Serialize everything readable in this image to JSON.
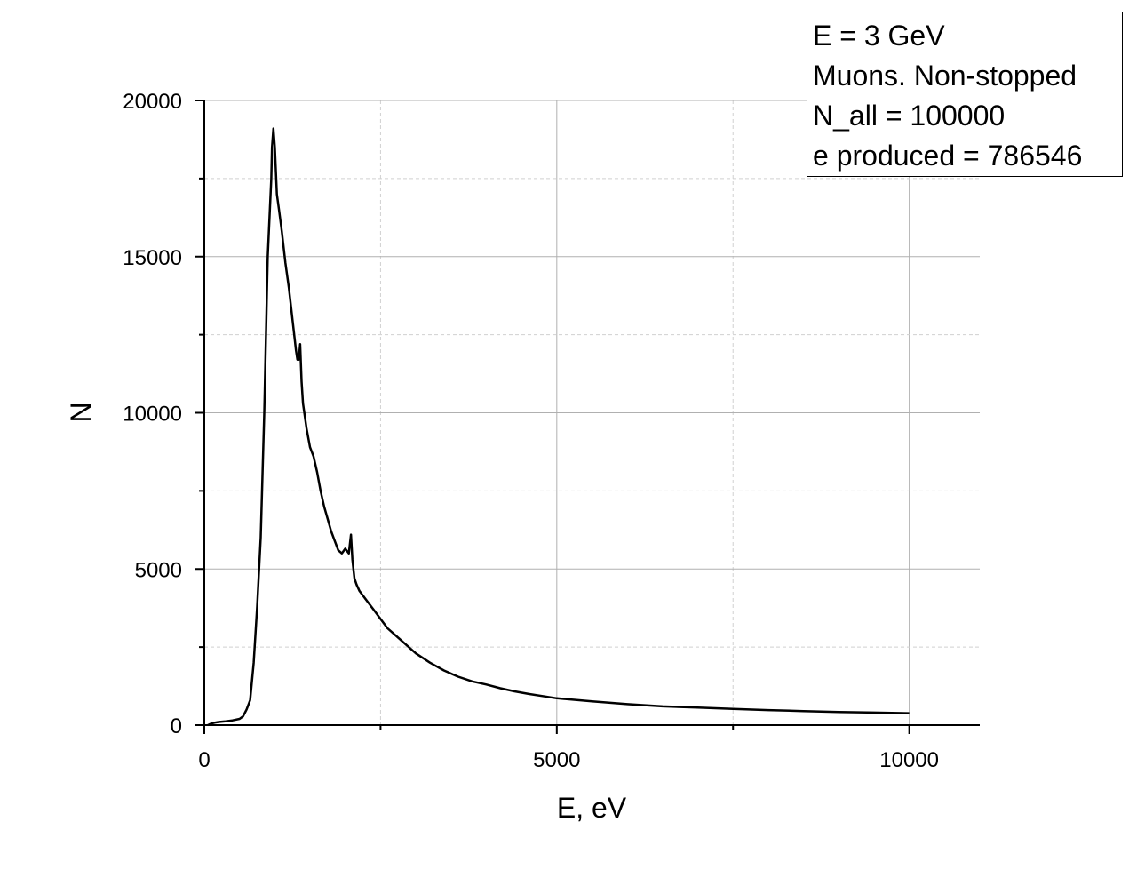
{
  "chart_data": {
    "type": "line",
    "xlabel": "E, eV",
    "ylabel": "N",
    "xlim": [
      0,
      11000
    ],
    "ylim": [
      0,
      20000
    ],
    "xticks": [
      0,
      5000,
      10000
    ],
    "yticks": [
      0,
      5000,
      10000,
      15000,
      20000
    ],
    "grid": true,
    "legend_position": "top-right",
    "annotation_lines": [
      "E = 3 GeV",
      "Muons. Non-stopped",
      "N_all = 100000",
      "e produced = 786546"
    ],
    "series": [
      {
        "color": "#000000",
        "x": [
          50,
          100,
          150,
          200,
          300,
          400,
          500,
          550,
          600,
          650,
          700,
          750,
          800,
          850,
          900,
          950,
          960,
          980,
          1000,
          1030,
          1060,
          1100,
          1150,
          1200,
          1250,
          1300,
          1320,
          1340,
          1360,
          1380,
          1400,
          1450,
          1500,
          1550,
          1600,
          1650,
          1700,
          1750,
          1800,
          1850,
          1900,
          1950,
          2000,
          2050,
          2080,
          2100,
          2130,
          2160,
          2200,
          2300,
          2400,
          2500,
          2600,
          2700,
          2800,
          3000,
          3200,
          3400,
          3600,
          3800,
          4000,
          4200,
          4400,
          4600,
          4800,
          5000,
          5500,
          6000,
          6500,
          7000,
          7500,
          8000,
          8500,
          9000,
          9500,
          10000
        ],
        "y": [
          0,
          50,
          80,
          100,
          120,
          150,
          200,
          280,
          500,
          800,
          2000,
          3800,
          6000,
          10000,
          15000,
          17500,
          18500,
          19100,
          18500,
          17000,
          16500,
          15800,
          14800,
          14000,
          13000,
          12000,
          11700,
          11700,
          12200,
          11000,
          10300,
          9500,
          8900,
          8600,
          8100,
          7500,
          7000,
          6600,
          6200,
          5900,
          5600,
          5500,
          5650,
          5500,
          6100,
          5300,
          4700,
          4500,
          4300,
          4000,
          3700,
          3400,
          3100,
          2900,
          2700,
          2300,
          2000,
          1750,
          1550,
          1400,
          1300,
          1180,
          1080,
          1000,
          930,
          860,
          760,
          670,
          600,
          560,
          520,
          480,
          450,
          420,
          400,
          380
        ]
      }
    ]
  }
}
